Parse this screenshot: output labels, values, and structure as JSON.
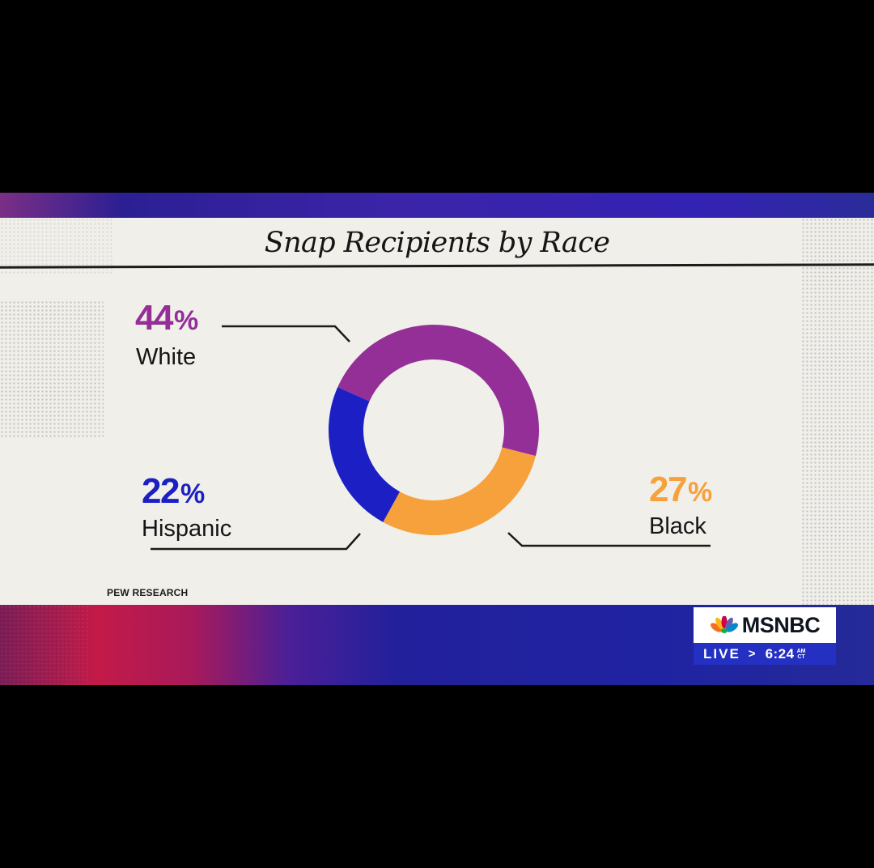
{
  "chart_data": {
    "type": "pie",
    "title": "Snap Recipients by Race",
    "source": "PEW RESEARCH",
    "slices": [
      {
        "label": "White",
        "value": 44,
        "display": "44",
        "color": "#932f97"
      },
      {
        "label": "Black",
        "value": 27,
        "display": "27",
        "color": "#f6a13c"
      },
      {
        "label": "Hispanic",
        "value": 22,
        "display": "22",
        "color": "#1c20c4"
      }
    ],
    "percent_sign": "%",
    "donut": true
  },
  "broadcast": {
    "network": "MSNBC",
    "live_label": "LIVE",
    "chevron": ">",
    "time": "6:24",
    "ampm": "AM",
    "zone": "CT"
  },
  "colors": {
    "paper": "#f1efea",
    "brand_blue": "#2330c2"
  }
}
